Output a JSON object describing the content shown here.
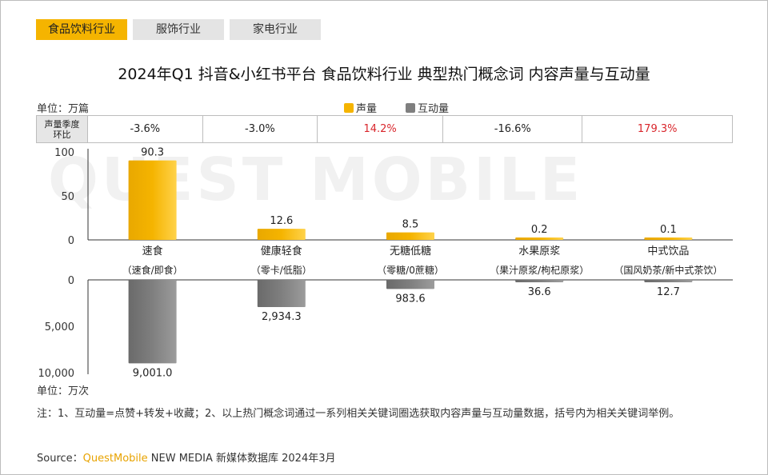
{
  "tabs": [
    {
      "label": "食品饮料行业",
      "active": true
    },
    {
      "label": "服饰行业",
      "active": false
    },
    {
      "label": "家电行业",
      "active": false
    }
  ],
  "title": "2024年Q1 抖音&小红书平台 食品饮料行业 典型热门概念词 内容声量与互动量",
  "unit_top": "单位：万篇",
  "unit_bottom": "单位：万次",
  "legend": [
    {
      "label": "声量",
      "color": "#f5b400"
    },
    {
      "label": "互动量",
      "color": "#7f7f7f"
    }
  ],
  "qoq_header": "声量季度环比",
  "qoq_values": [
    {
      "text": "-3.6%",
      "color": "#222222"
    },
    {
      "text": "-3.0%",
      "color": "#222222"
    },
    {
      "text": "14.2%",
      "color": "#d9262c"
    },
    {
      "text": "-16.6%",
      "color": "#222222"
    },
    {
      "text": "179.3%",
      "color": "#d9262c"
    }
  ],
  "watermark": "QUEST MOBILE",
  "chart_data": {
    "type": "bar",
    "categories": [
      {
        "name": "速食",
        "examples": "（速食/即食）"
      },
      {
        "name": "健康轻食",
        "examples": "（零卡/低脂）"
      },
      {
        "name": "无糖低糖",
        "examples": "（零糖/0蔗糖）"
      },
      {
        "name": "水果原浆",
        "examples": "（果汁原浆/枸杞原浆）"
      },
      {
        "name": "中式饮品",
        "examples": "（国风奶茶/新中式茶饮）"
      }
    ],
    "series": [
      {
        "name": "声量",
        "values": [
          90.3,
          12.6,
          8.5,
          0.2,
          0.1
        ],
        "labels": [
          "90.3",
          "12.6",
          "8.5",
          "0.2",
          "0.1"
        ],
        "color": "#f5b400",
        "ylim": [
          0,
          100
        ],
        "ticks": [
          "0",
          "50",
          "100"
        ]
      },
      {
        "name": "互动量",
        "values": [
          9001.0,
          2934.3,
          983.6,
          36.6,
          12.7
        ],
        "labels": [
          "9,001.0",
          "2,934.3",
          "983.6",
          "36.6",
          "12.7"
        ],
        "color": "#7f7f7f",
        "ylim": [
          0,
          10000
        ],
        "ticks": [
          "0",
          "5,000",
          "10,000"
        ],
        "inverted": true
      }
    ]
  },
  "note": "注：1、互动量=点赞+转发+收藏；2、以上热门概念词通过一系列相关关键词圈选获取内容声量与互动量数据，括号内为相关关键词举例。",
  "source_prefix": "Source：",
  "source_brand": "QuestMobile",
  "source_rest": " NEW MEDIA  新媒体数据库 2024年3月"
}
